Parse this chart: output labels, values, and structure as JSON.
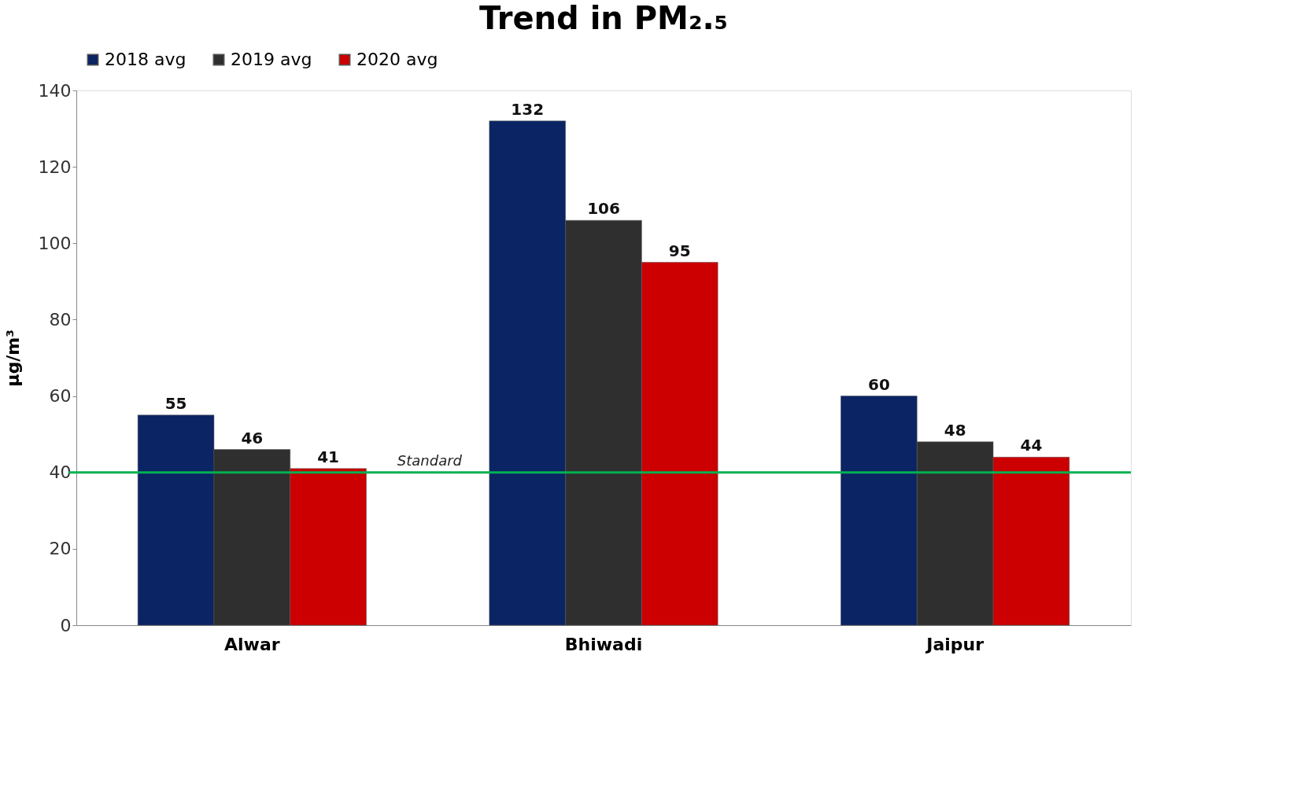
{
  "chart_data": {
    "type": "bar",
    "title": "Trend in PM₂.₅",
    "ylabel": "µg/m³",
    "categories": [
      "Alwar",
      "Bhiwadi",
      "Jaipur"
    ],
    "series": [
      {
        "name": "2018 avg",
        "color": "#0b2464",
        "values": [
          55,
          132,
          60
        ]
      },
      {
        "name": "2019 avg",
        "color": "#2f2f2f",
        "values": [
          46,
          106,
          48
        ]
      },
      {
        "name": "2020 avg",
        "color": "#cc0000",
        "values": [
          41,
          95,
          44
        ]
      }
    ],
    "ylim": [
      0,
      140
    ],
    "yticks": [
      0,
      20,
      40,
      60,
      80,
      100,
      120,
      140
    ],
    "ref_lines": [
      {
        "axis": "y",
        "value": 40,
        "label": "Standard",
        "color": "#00b050"
      }
    ],
    "data_labels": true,
    "legend": "top"
  }
}
